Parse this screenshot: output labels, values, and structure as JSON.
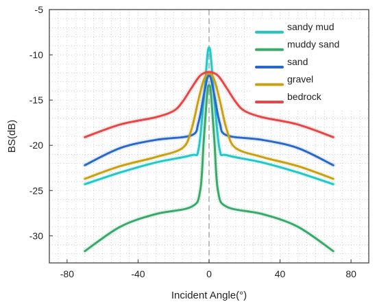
{
  "chart_data": {
    "type": "line",
    "xlabel": "Incident Angle(°)",
    "ylabel": "BS(dB)",
    "xlim": [
      -90,
      90
    ],
    "ylim": [
      -33,
      -5
    ],
    "xticks": [
      -80,
      -40,
      0,
      40,
      80
    ],
    "yticks": [
      -5,
      -10,
      -15,
      -20,
      -25,
      -30
    ],
    "grid": "dotted",
    "legend_position": "top-right",
    "vertical_reference": {
      "x": 0,
      "style": "dashed",
      "color": "#aaaaaa"
    },
    "series": [
      {
        "name": "sandy mud",
        "color": "#22c8c8",
        "x": [
          -70,
          -50,
          -30,
          -10,
          -6,
          -3,
          -1,
          0,
          1,
          3,
          6,
          10,
          30,
          50,
          70
        ],
        "y": [
          -24.3,
          -23.0,
          -21.9,
          -21.1,
          -20.5,
          -15.0,
          -10.2,
          -9.2,
          -10.2,
          -15.0,
          -20.5,
          -21.1,
          -21.9,
          -23.0,
          -24.3
        ]
      },
      {
        "name": "muddy sand",
        "color": "#3aa86a",
        "x": [
          -70,
          -50,
          -30,
          -10,
          -5,
          -3,
          -1,
          0,
          1,
          3,
          5,
          10,
          30,
          50,
          70
        ],
        "y": [
          -31.7,
          -29.0,
          -27.6,
          -26.8,
          -25.0,
          -19.5,
          -14.2,
          -13.4,
          -14.2,
          -19.5,
          -25.0,
          -26.8,
          -27.6,
          -29.0,
          -31.7
        ]
      },
      {
        "name": "sand",
        "color": "#2a68c8",
        "x": [
          -70,
          -50,
          -30,
          -10,
          -6,
          -3,
          -1,
          0,
          1,
          3,
          6,
          10,
          30,
          50,
          70
        ],
        "y": [
          -22.2,
          -20.3,
          -19.4,
          -18.9,
          -17.5,
          -14.5,
          -12.6,
          -12.3,
          -12.6,
          -14.5,
          -17.5,
          -18.9,
          -19.4,
          -20.3,
          -22.2
        ]
      },
      {
        "name": "gravel",
        "color": "#c8a014",
        "x": [
          -70,
          -50,
          -30,
          -15,
          -10,
          -6,
          -3,
          0,
          3,
          6,
          10,
          15,
          30,
          50,
          70
        ],
        "y": [
          -23.7,
          -22.3,
          -21.3,
          -20.3,
          -18.3,
          -15.0,
          -12.8,
          -12.0,
          -12.8,
          -15.0,
          -18.3,
          -20.3,
          -21.3,
          -22.3,
          -23.7
        ]
      },
      {
        "name": "bedrock",
        "color": "#e84646",
        "x": [
          -70,
          -50,
          -30,
          -20,
          -15,
          -10,
          -5,
          0,
          5,
          10,
          15,
          20,
          30,
          50,
          70
        ],
        "y": [
          -19.1,
          -17.7,
          -16.9,
          -16.2,
          -15.2,
          -13.7,
          -12.3,
          -11.9,
          -12.3,
          -13.7,
          -15.2,
          -16.2,
          -16.9,
          -17.7,
          -19.1
        ]
      }
    ]
  }
}
